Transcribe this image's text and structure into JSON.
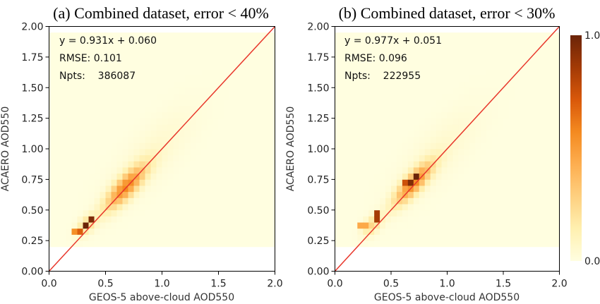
{
  "chart_data": [
    {
      "type": "heatmap",
      "title": "(a) Combined dataset, error < 40%",
      "xlabel": "GEOS-5 above-cloud AOD550",
      "ylabel": "ACAERO AOD550",
      "xlim": [
        0,
        2
      ],
      "ylim": [
        0,
        2
      ],
      "xticks": [
        "0.0",
        "0.5",
        "1.0",
        "1.5",
        "2.0"
      ],
      "yticks": [
        "0.00",
        "0.25",
        "0.50",
        "0.75",
        "1.00",
        "1.25",
        "1.50",
        "1.75",
        "2.00"
      ],
      "stats": [
        "y = 0.931x + 0.060",
        "RMSE: 0.101",
        "Npts:    386087"
      ],
      "one_to_one_line": true,
      "cloud_center_x": 0.68,
      "cloud_center_y": 0.69,
      "cloud_spread_along": 0.17,
      "cloud_spread_across": 0.055,
      "hotspots": [
        {
          "x": 0.31,
          "y": 0.37,
          "v": 1.0
        },
        {
          "x": 0.37,
          "y": 0.43,
          "v": 0.95
        },
        {
          "x": 0.27,
          "y": 0.34,
          "v": 0.7
        },
        {
          "x": 0.24,
          "y": 0.32,
          "v": 0.55
        }
      ]
    },
    {
      "type": "heatmap",
      "title": "(b) Combined dataset, error < 30%",
      "xlabel": "GEOS-5 above-cloud AOD550",
      "ylabel": "ACAERO AOD550",
      "xlim": [
        0,
        2
      ],
      "ylim": [
        0,
        2
      ],
      "xticks": [
        "0.0",
        "0.5",
        "1.0",
        "1.5",
        "2.0"
      ],
      "yticks": [
        "0.00",
        "0.25",
        "0.50",
        "0.75",
        "1.00",
        "1.25",
        "1.50",
        "1.75",
        "2.00"
      ],
      "stats": [
        "y = 0.977x + 0.051",
        "RMSE: 0.096",
        "Npts:    222955"
      ],
      "one_to_one_line": true,
      "cloud_center_x": 0.7,
      "cloud_center_y": 0.72,
      "cloud_spread_along": 0.16,
      "cloud_spread_across": 0.05,
      "hotspots": [
        {
          "x": 0.72,
          "y": 0.77,
          "v": 1.0
        },
        {
          "x": 0.69,
          "y": 0.72,
          "v": 0.95
        },
        {
          "x": 0.37,
          "y": 0.45,
          "v": 0.85
        },
        {
          "x": 0.63,
          "y": 0.71,
          "v": 0.75
        },
        {
          "x": 0.25,
          "y": 0.39,
          "v": 0.45
        }
      ]
    }
  ],
  "colorbar": {
    "min_label": "0.0",
    "max_label": "1.0",
    "colors": [
      "#fffee0",
      "#fff0b0",
      "#fed080",
      "#fdae50",
      "#f48a20",
      "#d9580a",
      "#a33a05",
      "#6b2408"
    ]
  },
  "line_color": "#e8372b"
}
